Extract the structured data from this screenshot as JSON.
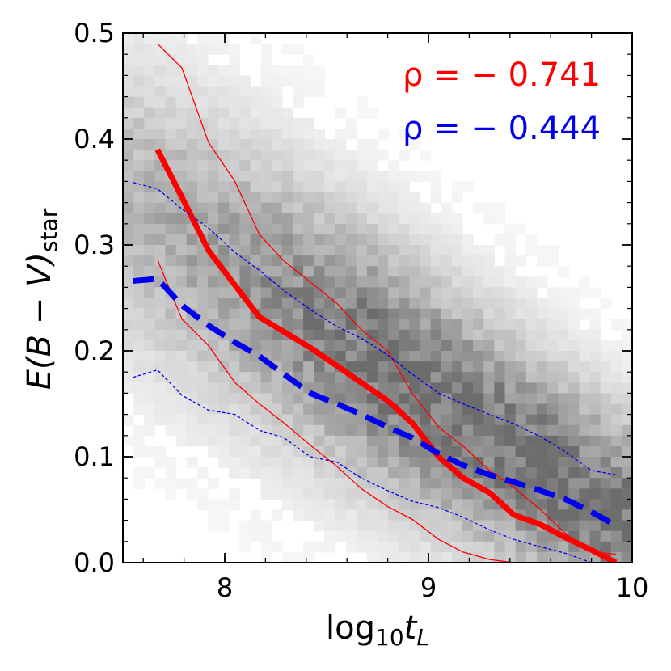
{
  "chart_data": {
    "type": "scatter",
    "style": "2d-histogram-with-trend-lines",
    "xlabel": {
      "base": "log",
      "sub": "10",
      "var": "t",
      "varsub": "L"
    },
    "ylabel": {
      "main": "E(B − V)",
      "sub": "star"
    },
    "xlim": [
      7.5,
      10.0
    ],
    "ylim": [
      0.0,
      0.5
    ],
    "xticks": [
      {
        "value": 8,
        "label": "8"
      },
      {
        "value": 9,
        "label": "9"
      },
      {
        "value": 10,
        "label": "10"
      }
    ],
    "yticks": [
      {
        "value": 0.0,
        "label": "0.0"
      },
      {
        "value": 0.1,
        "label": "0.1"
      },
      {
        "value": 0.2,
        "label": "0.2"
      },
      {
        "value": 0.3,
        "label": "0.3"
      },
      {
        "value": 0.4,
        "label": "0.4"
      },
      {
        "value": 0.5,
        "label": "0.5"
      }
    ],
    "annotations": [
      {
        "text": "ρ = − 0.741",
        "color": "#ff0000"
      },
      {
        "text": "ρ = − 0.444",
        "color": "#0000ee"
      }
    ],
    "series": [
      {
        "name": "red-median",
        "color": "#ff0000",
        "style": "solid-thick",
        "x": [
          7.67,
          7.79,
          7.92,
          8.05,
          8.17,
          8.29,
          8.42,
          8.55,
          8.67,
          8.8,
          8.92,
          9.05,
          9.17,
          9.3,
          9.42,
          9.55,
          9.67,
          9.8,
          9.92
        ],
        "y": [
          0.39,
          0.345,
          0.295,
          0.262,
          0.232,
          0.218,
          0.203,
          0.186,
          0.17,
          0.153,
          0.132,
          0.1,
          0.08,
          0.066,
          0.045,
          0.036,
          0.024,
          0.012,
          0.0
        ]
      },
      {
        "name": "red-upper",
        "color": "#ff0000",
        "style": "solid-thin",
        "x": [
          7.67,
          7.79,
          7.92,
          8.05,
          8.17,
          8.29,
          8.42,
          8.55,
          8.67,
          8.8,
          8.92,
          9.05,
          9.17,
          9.3,
          9.42,
          9.55,
          9.67,
          9.8,
          9.92
        ],
        "y": [
          0.49,
          0.467,
          0.397,
          0.36,
          0.31,
          0.285,
          0.265,
          0.245,
          0.22,
          0.2,
          0.16,
          0.128,
          0.11,
          0.087,
          0.071,
          0.05,
          0.028,
          0.01,
          0.008
        ]
      },
      {
        "name": "red-lower",
        "color": "#ff0000",
        "style": "solid-thin",
        "x": [
          7.67,
          7.79,
          7.92,
          8.05,
          8.17,
          8.29,
          8.42,
          8.55,
          8.67,
          8.8,
          8.92,
          9.05,
          9.17,
          9.3,
          9.42
        ],
        "y": [
          0.286,
          0.23,
          0.205,
          0.17,
          0.15,
          0.132,
          0.111,
          0.091,
          0.07,
          0.053,
          0.041,
          0.022,
          0.01,
          0.003,
          0.0
        ]
      },
      {
        "name": "blue-median",
        "color": "#0000ee",
        "style": "dashed-thick",
        "x": [
          7.55,
          7.67,
          7.79,
          7.92,
          8.05,
          8.17,
          8.29,
          8.42,
          8.55,
          8.67,
          8.8,
          8.92,
          9.05,
          9.17,
          9.3,
          9.42,
          9.55,
          9.67,
          9.8,
          9.92
        ],
        "y": [
          0.266,
          0.268,
          0.243,
          0.224,
          0.208,
          0.195,
          0.178,
          0.16,
          0.15,
          0.14,
          0.128,
          0.118,
          0.103,
          0.092,
          0.083,
          0.076,
          0.068,
          0.06,
          0.048,
          0.035
        ]
      },
      {
        "name": "blue-upper",
        "color": "#0000ee",
        "style": "dashed-thin",
        "x": [
          7.55,
          7.67,
          7.79,
          7.92,
          8.05,
          8.17,
          8.29,
          8.42,
          8.55,
          8.67,
          8.8,
          8.92,
          9.05,
          9.17,
          9.3,
          9.42,
          9.55,
          9.67,
          9.8,
          9.92
        ],
        "y": [
          0.359,
          0.353,
          0.334,
          0.316,
          0.293,
          0.276,
          0.257,
          0.239,
          0.223,
          0.212,
          0.196,
          0.178,
          0.16,
          0.15,
          0.14,
          0.131,
          0.119,
          0.105,
          0.087,
          0.083
        ]
      },
      {
        "name": "blue-lower",
        "color": "#0000ee",
        "style": "dashed-thin",
        "x": [
          7.55,
          7.67,
          7.79,
          7.92,
          8.05,
          8.17,
          8.29,
          8.42,
          8.55,
          8.67,
          8.8,
          8.92,
          9.05,
          9.17,
          9.3,
          9.42,
          9.55,
          9.67,
          9.8
        ],
        "y": [
          0.175,
          0.182,
          0.158,
          0.144,
          0.14,
          0.125,
          0.118,
          0.1,
          0.095,
          0.08,
          0.068,
          0.058,
          0.052,
          0.043,
          0.031,
          0.022,
          0.015,
          0.009,
          0.0
        ]
      }
    ]
  }
}
